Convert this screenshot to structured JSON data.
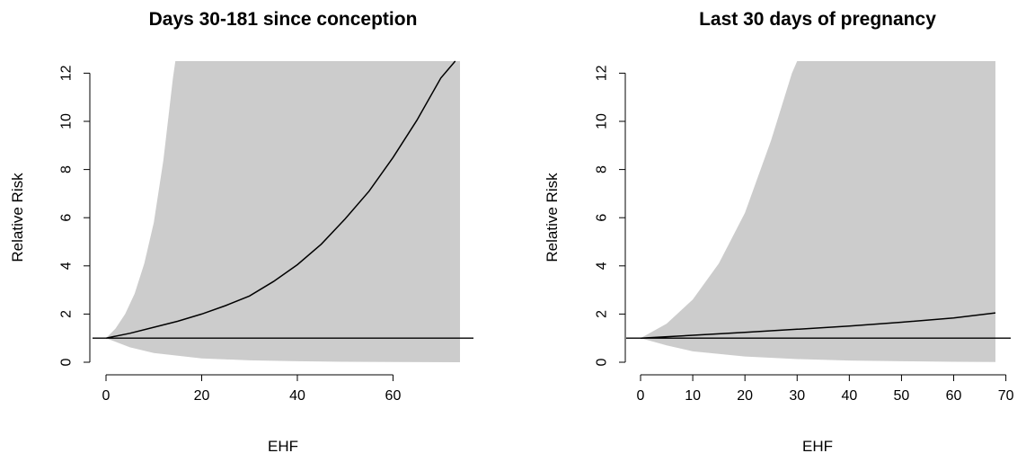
{
  "chart_data": [
    {
      "type": "line",
      "title": "Days 30-181 since conception",
      "xlabel": "EHF",
      "ylabel": "Relative Risk",
      "xlim": [
        0,
        74
      ],
      "ylim": [
        0,
        12.5
      ],
      "xticks": [
        0,
        20,
        40,
        60
      ],
      "yticks": [
        0,
        2,
        4,
        6,
        8,
        10,
        12
      ],
      "reference_line": 1,
      "series": [
        {
          "role": "estimate",
          "x": [
            0,
            5,
            10,
            15,
            20,
            25,
            30,
            35,
            40,
            45,
            50,
            55,
            60,
            65,
            70,
            73
          ],
          "y": [
            1.0,
            1.2,
            1.45,
            1.7,
            2.0,
            2.35,
            2.75,
            3.35,
            4.05,
            4.9,
            5.95,
            7.1,
            8.5,
            10.05,
            11.8,
            12.5
          ]
        },
        {
          "role": "ci_upper",
          "x": [
            0,
            2,
            4,
            6,
            8,
            10,
            12,
            14,
            14.5,
            74
          ],
          "y": [
            1.0,
            1.4,
            2.0,
            2.85,
            4.1,
            5.8,
            8.4,
            11.8,
            12.5,
            12.5
          ]
        },
        {
          "role": "ci_lower",
          "x": [
            0,
            5,
            10,
            20,
            30,
            40,
            50,
            60,
            74
          ],
          "y": [
            1.0,
            0.62,
            0.38,
            0.16,
            0.08,
            0.04,
            0.02,
            0.01,
            0.0
          ]
        }
      ],
      "ci_color": "#cccccc",
      "line_color": "#000000"
    },
    {
      "type": "line",
      "title": "Last 30 days of pregnancy",
      "xlabel": "EHF",
      "ylabel": "Relative Risk",
      "xlim": [
        0,
        68
      ],
      "ylim": [
        0,
        12.5
      ],
      "xticks": [
        0,
        10,
        20,
        30,
        40,
        50,
        60,
        70
      ],
      "yticks": [
        0,
        2,
        4,
        6,
        8,
        10,
        12
      ],
      "reference_line": 1,
      "series": [
        {
          "role": "estimate",
          "x": [
            0,
            10,
            20,
            30,
            40,
            50,
            60,
            68
          ],
          "y": [
            1.0,
            1.12,
            1.24,
            1.37,
            1.5,
            1.66,
            1.84,
            2.05
          ]
        },
        {
          "role": "ci_upper",
          "x": [
            0,
            5,
            10,
            15,
            20,
            25,
            29,
            30,
            68
          ],
          "y": [
            1.0,
            1.6,
            2.6,
            4.1,
            6.2,
            9.2,
            12.0,
            12.5,
            12.5
          ]
        },
        {
          "role": "ci_lower",
          "x": [
            0,
            5,
            10,
            20,
            30,
            40,
            50,
            60,
            68
          ],
          "y": [
            1.0,
            0.7,
            0.45,
            0.24,
            0.13,
            0.07,
            0.04,
            0.02,
            0.01
          ]
        }
      ],
      "ci_color": "#cccccc",
      "line_color": "#000000"
    }
  ]
}
